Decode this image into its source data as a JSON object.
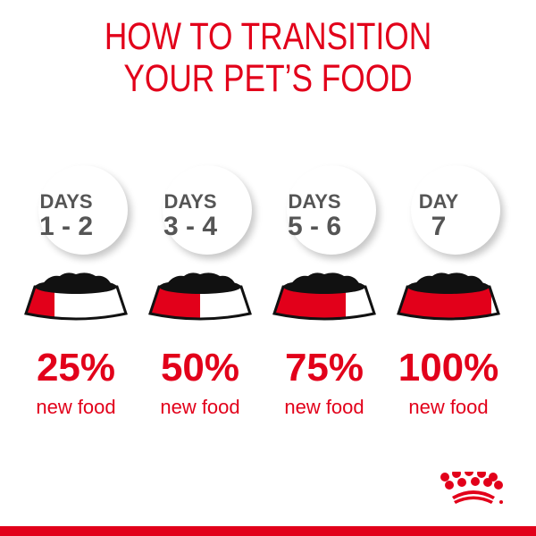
{
  "title": {
    "line1": "HOW TO TRANSITION",
    "line2": "YOUR PET’S FOOD"
  },
  "steps": [
    {
      "label": "DAYS",
      "range": "1 - 2",
      "percent": "25%",
      "caption": "new food",
      "fraction": 0.25
    },
    {
      "label": "DAYS",
      "range": "3 - 4",
      "percent": "50%",
      "caption": "new food",
      "fraction": 0.5
    },
    {
      "label": "DAYS",
      "range": "5 - 6",
      "percent": "75%",
      "caption": "new food",
      "fraction": 0.75
    },
    {
      "label": "DAY",
      "range": "7",
      "percent": "100%",
      "caption": "new food",
      "fraction": 1.0
    }
  ],
  "brand": {
    "logo": "royal-canin-crown",
    "color": "#e2001a"
  }
}
